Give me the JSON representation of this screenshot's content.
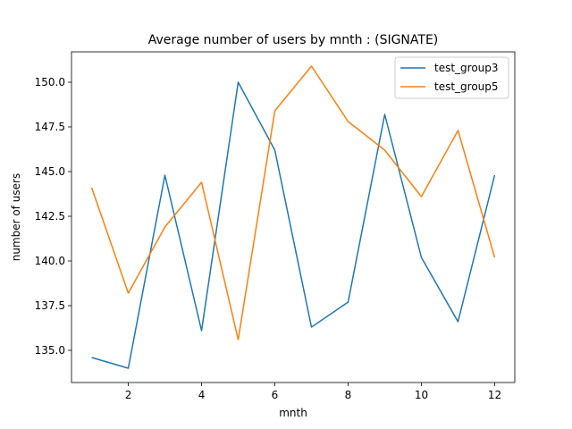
{
  "chart_data": {
    "type": "line",
    "title": "Average number of users by mnth : (SIGNATE)",
    "xlabel": "mnth",
    "ylabel": "number of users",
    "x": [
      1,
      2,
      3,
      4,
      5,
      6,
      7,
      8,
      9,
      10,
      11,
      12
    ],
    "xlim": [
      0.45,
      12.55
    ],
    "ylim": [
      133.2,
      151.7
    ],
    "xticks": [
      2,
      4,
      6,
      8,
      10,
      12
    ],
    "xtick_labels": [
      "2",
      "4",
      "6",
      "8",
      "10",
      "12"
    ],
    "yticks": [
      135.0,
      137.5,
      140.0,
      142.5,
      145.0,
      147.5,
      150.0
    ],
    "ytick_labels": [
      "135.0",
      "137.5",
      "140.0",
      "142.5",
      "145.0",
      "147.5",
      "150.0"
    ],
    "grid": false,
    "legend_position": "top-right",
    "series": [
      {
        "name": "test_group3",
        "color": "#1f77b4",
        "values": [
          134.6,
          134.0,
          144.8,
          136.1,
          150.0,
          146.2,
          136.3,
          137.7,
          148.2,
          140.2,
          136.6,
          144.8
        ]
      },
      {
        "name": "test_group5",
        "color": "#ff7f0e",
        "values": [
          144.1,
          138.2,
          141.9,
          144.4,
          135.6,
          148.4,
          150.9,
          147.8,
          146.2,
          143.6,
          147.3,
          140.2
        ]
      }
    ]
  }
}
